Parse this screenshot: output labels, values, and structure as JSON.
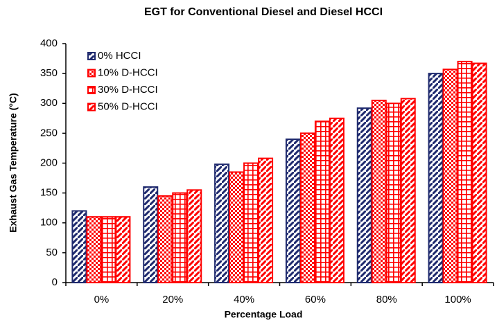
{
  "chart_data": {
    "type": "bar",
    "title": "EGT for Conventional Diesel and Diesel HCCI",
    "x_label": "Percentage Load",
    "y_label": "Exhaust Gas Temperature (°C)",
    "categories": [
      "0%",
      "20%",
      "40%",
      "60%",
      "80%",
      "100%"
    ],
    "series": [
      {
        "name": "0% HCCI",
        "color": "#1f2a6e",
        "pattern": "diagonal",
        "values": [
          120,
          160,
          198,
          240,
          292,
          350
        ]
      },
      {
        "name": "10% D-HCCI",
        "color": "#ff0000",
        "pattern": "checker",
        "values": [
          110,
          145,
          185,
          250,
          305,
          357
        ]
      },
      {
        "name": "30% D-HCCI",
        "color": "#ff0000",
        "pattern": "grid",
        "values": [
          110,
          150,
          200,
          270,
          300,
          370
        ]
      },
      {
        "name": "50% D-HCCI",
        "color": "#ff0000",
        "pattern": "diagonal",
        "values": [
          110,
          155,
          208,
          275,
          308,
          367
        ]
      }
    ],
    "ylim": [
      0,
      400
    ],
    "yticks": [
      0,
      50,
      100,
      150,
      200,
      250,
      300,
      350,
      400
    ],
    "grid": false,
    "legend": "top-left"
  }
}
